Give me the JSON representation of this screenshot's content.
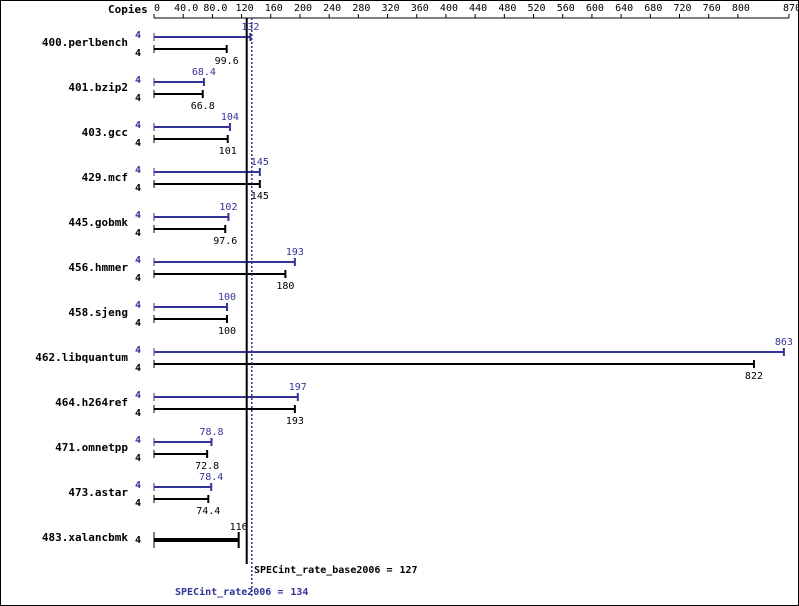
{
  "chart_data": {
    "type": "bar",
    "orientation": "horizontal",
    "copies_label": "Copies",
    "categories": [
      "400.perlbench",
      "401.bzip2",
      "403.gcc",
      "429.mcf",
      "445.gobmk",
      "456.hmmer",
      "458.sjeng",
      "462.libquantum",
      "464.h264ref",
      "471.omnetpp",
      "473.astar",
      "483.xalancbmk"
    ],
    "series": [
      {
        "color": "#333399",
        "values": [
          132,
          68.4,
          104,
          145,
          102,
          193,
          100,
          863,
          197,
          78.8,
          78.4,
          null
        ],
        "copies": [
          4,
          4,
          4,
          4,
          4,
          4,
          4,
          4,
          4,
          4,
          4,
          null
        ]
      },
      {
        "color": "#000000",
        "values": [
          99.6,
          66.8,
          101,
          145,
          97.6,
          180,
          100,
          822,
          193,
          72.8,
          74.4,
          116
        ],
        "copies": [
          4,
          4,
          4,
          4,
          4,
          4,
          4,
          4,
          4,
          4,
          4,
          4
        ]
      }
    ],
    "xlim": [
      0,
      870
    ],
    "xticks": [
      0,
      {
        "value": 40,
        "label": "40.0"
      },
      {
        "value": 80,
        "label": "80.0"
      },
      120,
      160,
      200,
      240,
      280,
      320,
      360,
      400,
      440,
      480,
      520,
      560,
      600,
      640,
      680,
      720,
      760,
      800,
      870
    ],
    "reference_lines": [
      {
        "label": "SPECint_rate_base2006 =",
        "value": 127,
        "color": "#000000",
        "dashed": false
      },
      {
        "label": "SPECint_rate2006 =",
        "value": 134,
        "color": "#333399",
        "dashed": true
      }
    ]
  }
}
